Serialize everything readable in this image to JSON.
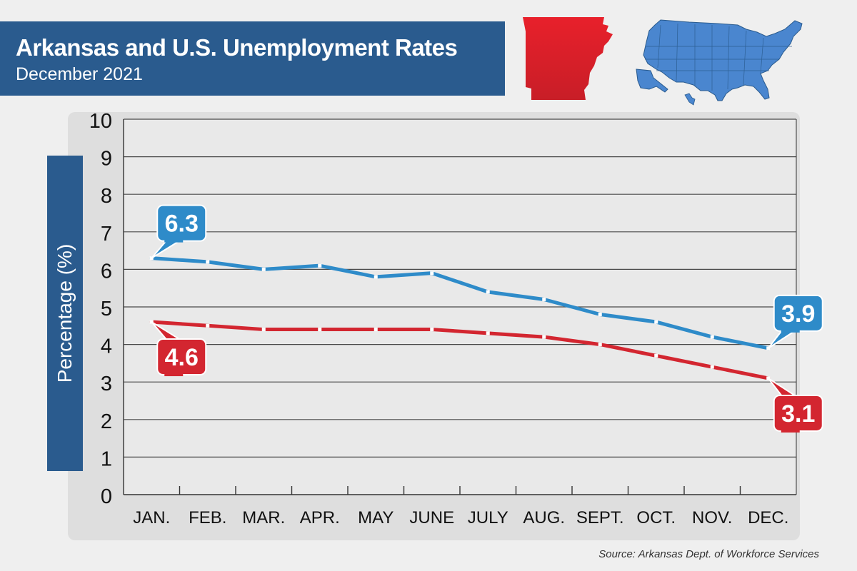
{
  "header": {
    "title": "Arkansas and U.S. Unemployment Rates",
    "subtitle": "December 2021"
  },
  "source": "Source: Arkansas Dept. of Workforce Services",
  "colors": {
    "us": "#2e8bc9",
    "arkansas": "#d32630",
    "header": "#2a5b8e",
    "panel": "#dedede"
  },
  "chart_data": {
    "type": "line",
    "title": "Arkansas and U.S. Unemployment Rates",
    "subtitle": "December 2021",
    "xlabel": "",
    "ylabel": "Percentage (%)",
    "ylim": [
      0,
      10
    ],
    "yticks": [
      "0",
      "1",
      "2",
      "3",
      "4",
      "5",
      "6",
      "7",
      "8",
      "9",
      "10"
    ],
    "grid": true,
    "categories": [
      "JAN.",
      "FEB.",
      "MAR.",
      "APR.",
      "MAY",
      "JUNE",
      "JULY",
      "AUG.",
      "SEPT.",
      "OCT.",
      "NOV.",
      "DEC."
    ],
    "series": [
      {
        "name": "U.S.",
        "color": "#2e8bc9",
        "values": [
          6.3,
          6.2,
          6.0,
          6.1,
          5.8,
          5.9,
          5.4,
          5.2,
          4.8,
          4.6,
          4.2,
          3.9
        ],
        "callouts": [
          {
            "index": 0,
            "label": "6.3"
          },
          {
            "index": 11,
            "label": "3.9"
          }
        ]
      },
      {
        "name": "Arkansas",
        "color": "#d32630",
        "values": [
          4.6,
          4.5,
          4.4,
          4.4,
          4.4,
          4.4,
          4.3,
          4.2,
          4.0,
          3.7,
          3.4,
          3.1
        ],
        "callouts": [
          {
            "index": 0,
            "label": "4.6"
          },
          {
            "index": 11,
            "label": "3.1"
          }
        ]
      }
    ]
  }
}
